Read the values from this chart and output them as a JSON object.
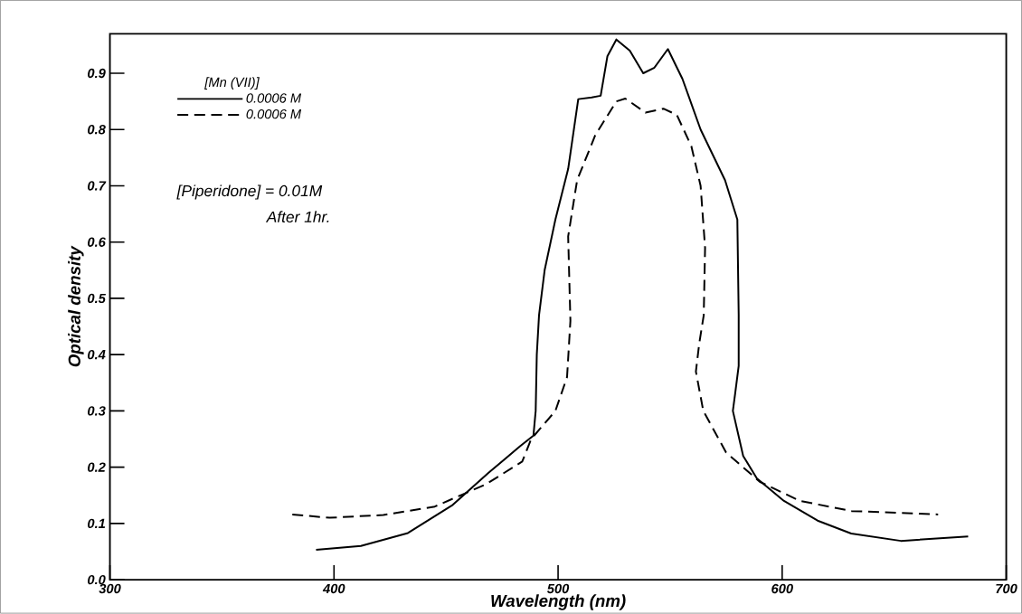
{
  "chart_data": {
    "type": "line",
    "xlabel": "Wavelength (nm)",
    "ylabel": "Optical density",
    "legend_title": "[Mn (VII)]",
    "annotations": [
      "[Piperidone] = 0.01M",
      "After 1hr."
    ],
    "xlim": [
      300,
      700
    ],
    "ylim": [
      0,
      0.97
    ],
    "xticks": [
      300,
      400,
      500,
      600,
      700
    ],
    "yticks": [
      {
        "value": 0,
        "label": "0.0"
      },
      {
        "value": 0.1,
        "label": "0.1"
      },
      {
        "value": 0.2,
        "label": "0.2"
      },
      {
        "value": 0.3,
        "label": "0.3"
      },
      {
        "value": 0.4,
        "label": "0.4"
      },
      {
        "value": 0.5,
        "label": "0.5"
      },
      {
        "value": 0.6,
        "label": "0.6"
      },
      {
        "value": 0.7,
        "label": "0.7"
      },
      {
        "value": 0.8,
        "label": "0.8"
      },
      {
        "value": 0.9,
        "label": "0.9"
      }
    ],
    "legend": "top left",
    "grid": false,
    "marker": "none",
    "series": [
      {
        "name": "0.0006 M",
        "color": "#000000",
        "line_style": "solid",
        "x": [
          392,
          412,
          433,
          453,
          469,
          483,
          489,
          490,
          490.5,
          491.5,
          494,
          498.8,
          504.5,
          509,
          515,
          519,
          522,
          526,
          532,
          538,
          543,
          549,
          555.5,
          563.6,
          574.5,
          580,
          580.6,
          580.6,
          579,
          578,
          582.6,
          588.7,
          600.8,
          615.8,
          630.8,
          653,
          683
        ],
        "values": [
          0.053,
          0.06,
          0.083,
          0.133,
          0.19,
          0.237,
          0.256,
          0.3,
          0.4,
          0.47,
          0.55,
          0.64,
          0.73,
          0.854,
          0.857,
          0.86,
          0.93,
          0.96,
          0.94,
          0.9,
          0.91,
          0.943,
          0.89,
          0.8,
          0.71,
          0.64,
          0.47,
          0.38,
          0.33,
          0.3,
          0.22,
          0.18,
          0.14,
          0.105,
          0.082,
          0.069,
          0.077
        ]
      },
      {
        "name": "0.0006 M",
        "color": "#000000",
        "line_style": "dashed",
        "x": [
          381.4,
          398,
          422,
          445,
          468,
          484,
          488,
          498.8,
          504,
          505.5,
          504.5,
          508.5,
          516.6,
          526,
          530,
          539,
          547,
          553,
          559.5,
          563.6,
          565.6,
          565,
          563,
          561.5,
          564.8,
          575,
          590,
          608,
          631,
          669.6
        ],
        "values": [
          0.116,
          0.11,
          0.115,
          0.13,
          0.17,
          0.21,
          0.25,
          0.3,
          0.36,
          0.46,
          0.61,
          0.71,
          0.79,
          0.85,
          0.855,
          0.83,
          0.837,
          0.826,
          0.77,
          0.7,
          0.59,
          0.47,
          0.42,
          0.37,
          0.3,
          0.226,
          0.174,
          0.14,
          0.122,
          0.116
        ]
      }
    ]
  }
}
